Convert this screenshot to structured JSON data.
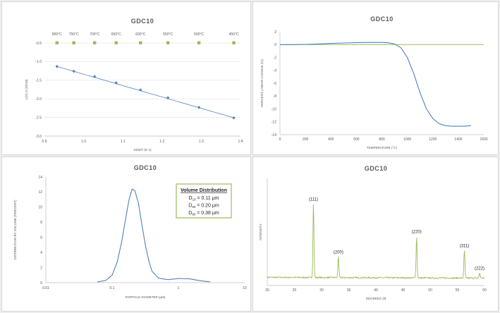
{
  "chart_data": [
    {
      "type": "line",
      "title": "GDC10",
      "xlabel": "1000/T (K-1)",
      "ylabel": "LOG σ (S/CM)",
      "xlim": [
        0.9,
        1.4
      ],
      "ylim": [
        -3.0,
        -0.5
      ],
      "xticks": [
        "0.9",
        "1.0",
        "1.1",
        "1.2",
        "1.3",
        "1.4"
      ],
      "yticks": [
        "-0.5",
        "-1.0",
        "-1.5",
        "-2.0",
        "-2.5",
        "-3.0"
      ],
      "top_axis_labels": [
        "800°C",
        "750°C",
        "700°C",
        "650°C",
        "600°C",
        "550°C",
        "500°C",
        "450°C"
      ],
      "top_marker_color": "#9bbb59",
      "series": [
        {
          "color": "#4f81bd",
          "x": [
            0.932,
            0.975,
            1.028,
            1.083,
            1.145,
            1.215,
            1.294,
            1.383
          ],
          "y": [
            -1.13,
            -1.26,
            -1.4,
            -1.57,
            -1.76,
            -1.97,
            -2.23,
            -2.51
          ]
        }
      ]
    },
    {
      "type": "line",
      "title": "GDC10",
      "xlabel": "TEMPERATURE (°C)",
      "ylabel": "PERCENT LINEAR CHANGE (%)",
      "xlim": [
        0,
        1600
      ],
      "ylim": [
        -14,
        2
      ],
      "xticks": [
        "0",
        "200",
        "400",
        "600",
        "800",
        "1000",
        "1200",
        "1400",
        "1600"
      ],
      "yticks": [
        "2",
        "0",
        "-2",
        "-4",
        "-6",
        "-8",
        "-10",
        "-12",
        "-14"
      ],
      "reference_line": {
        "y": 0,
        "color": "#9bbb59"
      },
      "series": [
        {
          "color": "#4f81bd",
          "x": [
            0,
            100,
            200,
            300,
            400,
            500,
            600,
            700,
            800,
            850,
            900,
            950,
            1000,
            1050,
            1100,
            1150,
            1200,
            1250,
            1300,
            1350,
            1400,
            1450,
            1500
          ],
          "y": [
            0,
            0,
            0.03,
            0.1,
            0.18,
            0.25,
            0.3,
            0.33,
            0.33,
            0.28,
            0.1,
            -0.5,
            -2.0,
            -4.5,
            -7.5,
            -10.0,
            -11.5,
            -12.3,
            -12.6,
            -12.7,
            -12.7,
            -12.7,
            -12.6
          ]
        }
      ]
    },
    {
      "type": "line",
      "title": "GDC10",
      "xlabel": "PARTICLE DIAMETER (μM)",
      "ylabel": "DISTRIBUTION BY VOLUME (PERCENT)",
      "xscale": "log",
      "xlim": [
        0.01,
        10
      ],
      "ylim": [
        0,
        14
      ],
      "xticks": [
        "0.01",
        "0.1",
        "1",
        "10"
      ],
      "yticks": [
        "0",
        "2",
        "4",
        "6",
        "8",
        "10",
        "12",
        "14"
      ],
      "series": [
        {
          "color": "#4f81bd",
          "x": [
            0.06,
            0.08,
            0.1,
            0.12,
            0.14,
            0.16,
            0.18,
            0.2,
            0.22,
            0.25,
            0.28,
            0.32,
            0.36,
            0.4,
            0.5,
            0.7,
            1.0,
            1.5,
            2.0,
            3.0
          ],
          "y": [
            0.1,
            0.3,
            1.0,
            2.8,
            5.5,
            8.5,
            11.0,
            12.4,
            12.2,
            10.5,
            7.8,
            4.8,
            2.8,
            1.5,
            0.6,
            0.4,
            0.55,
            0.5,
            0.3,
            0.1
          ]
        }
      ],
      "annotation": {
        "heading": "Volume Distribution",
        "rows": [
          {
            "name": "D",
            "sub": "10",
            "value": " = 0.11 μm"
          },
          {
            "name": "D",
            "sub": "50",
            "value": " = 0.20 μm"
          },
          {
            "name": "D",
            "sub": "90",
            "value": " = 0.38 μm"
          }
        ],
        "border_color": "#9bbb59"
      }
    },
    {
      "type": "line",
      "title": "GDC10",
      "xlabel": "DEGREES 2θ",
      "ylabel": "INTENSITY",
      "xlim": [
        20,
        60
      ],
      "xticks": [
        "20",
        "25",
        "30",
        "35",
        "40",
        "45",
        "50",
        "55",
        "60"
      ],
      "peak_labels": [
        {
          "label": "(111)",
          "x": 28.5,
          "height": 0.8
        },
        {
          "label": "(200)",
          "x": 33.1,
          "height": 0.23
        },
        {
          "label": "(220)",
          "x": 47.5,
          "height": 0.45
        },
        {
          "label": "(311)",
          "x": 56.3,
          "height": 0.3
        },
        {
          "label": "(222)",
          "x": 59.1,
          "height": 0.055
        }
      ],
      "series": [
        {
          "color": "#9bbb59"
        }
      ]
    }
  ]
}
